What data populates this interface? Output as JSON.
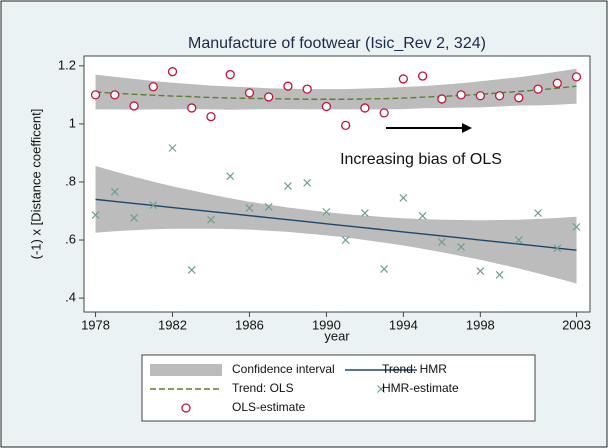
{
  "chart_data": {
    "type": "line",
    "title": "Manufacture of footwear (Isic_Rev 2, 324)",
    "x_label": "year",
    "y_label": "(-1) x [Distance coefficent]",
    "annotation": "Increasing bias of OLS",
    "x": [
      1978,
      1979,
      1980,
      1981,
      1982,
      1983,
      1984,
      1985,
      1986,
      1987,
      1988,
      1989,
      1990,
      1991,
      1992,
      1993,
      1994,
      1995,
      1996,
      1997,
      1998,
      1999,
      2000,
      2001,
      2002,
      2003
    ],
    "xlim": [
      1977.4,
      2003.7
    ],
    "xticks": [
      1978,
      1982,
      1986,
      1990,
      1994,
      1998,
      2003
    ],
    "ylim": [
      0.352,
      1.234
    ],
    "yticks": [
      {
        "value": 0.4,
        "label": ".4"
      },
      {
        "value": 0.6,
        "label": ".6"
      },
      {
        "value": 0.8,
        "label": ".8"
      },
      1,
      1.2
    ],
    "grid": false,
    "confidence_interval": {
      "name": "Confidence interval",
      "color": "#bcbcbc",
      "bands": [
        {
          "upper": [
            1.17,
            1.162,
            1.155,
            1.148,
            1.142,
            1.137,
            1.132,
            1.129,
            1.126,
            1.123,
            1.121,
            1.12,
            1.12,
            1.12,
            1.122,
            1.124,
            1.127,
            1.13,
            1.135,
            1.14,
            1.147,
            1.154,
            1.161,
            1.17,
            1.18,
            1.19
          ],
          "lower": [
            1.05,
            1.05,
            1.049,
            1.05,
            1.05,
            1.051,
            1.05,
            1.049,
            1.05,
            1.051,
            1.051,
            1.05,
            1.05,
            1.05,
            1.05,
            1.05,
            1.051,
            1.054,
            1.055,
            1.056,
            1.057,
            1.06,
            1.063,
            1.064,
            1.066,
            1.07
          ]
        },
        {
          "upper": [
            0.855,
            0.836,
            0.818,
            0.801,
            0.785,
            0.771,
            0.757,
            0.744,
            0.732,
            0.722,
            0.712,
            0.704,
            0.696,
            0.689,
            0.684,
            0.679,
            0.675,
            0.672,
            0.67,
            0.669,
            0.668,
            0.669,
            0.67,
            0.673,
            0.676,
            0.68
          ],
          "lower": [
            0.625,
            0.63,
            0.634,
            0.637,
            0.639,
            0.639,
            0.639,
            0.638,
            0.636,
            0.632,
            0.628,
            0.622,
            0.616,
            0.609,
            0.6,
            0.591,
            0.581,
            0.57,
            0.558,
            0.545,
            0.532,
            0.517,
            0.502,
            0.485,
            0.468,
            0.45
          ]
        }
      ]
    },
    "series": [
      {
        "name": "Trend: HMR",
        "color": "#1a476f",
        "style": "solid",
        "values": [
          0.74,
          0.733,
          0.726,
          0.719,
          0.712,
          0.705,
          0.698,
          0.691,
          0.684,
          0.677,
          0.67,
          0.663,
          0.656,
          0.649,
          0.642,
          0.635,
          0.628,
          0.621,
          0.614,
          0.607,
          0.6,
          0.593,
          0.586,
          0.579,
          0.572,
          0.565
        ]
      },
      {
        "name": "Trend: OLS",
        "color": "#5f7f2f",
        "style": "dashed",
        "values": [
          1.11,
          1.106,
          1.102,
          1.099,
          1.096,
          1.094,
          1.091,
          1.089,
          1.088,
          1.087,
          1.086,
          1.085,
          1.085,
          1.085,
          1.086,
          1.087,
          1.089,
          1.092,
          1.095,
          1.098,
          1.102,
          1.107,
          1.112,
          1.117,
          1.123,
          1.13
        ]
      },
      {
        "name": "HMR-estimate",
        "color": "#6f9f8f",
        "style": "cross",
        "values": [
          0.686,
          0.766,
          0.676,
          0.72,
          0.917,
          0.497,
          0.67,
          0.82,
          0.71,
          0.714,
          0.786,
          0.797,
          0.697,
          0.6,
          0.693,
          0.5,
          0.745,
          0.683,
          0.593,
          0.576,
          0.493,
          0.48,
          0.6,
          0.693,
          0.572,
          0.645
        ]
      },
      {
        "name": "OLS-estimate",
        "color": "#c0143c",
        "style": "circle",
        "values": [
          1.1,
          1.1,
          1.062,
          1.128,
          1.18,
          1.055,
          1.025,
          1.17,
          1.107,
          1.093,
          1.13,
          1.12,
          1.06,
          0.995,
          1.055,
          1.038,
          1.155,
          1.165,
          1.086,
          1.1,
          1.097,
          1.097,
          1.09,
          1.12,
          1.14,
          1.162
        ]
      }
    ]
  }
}
